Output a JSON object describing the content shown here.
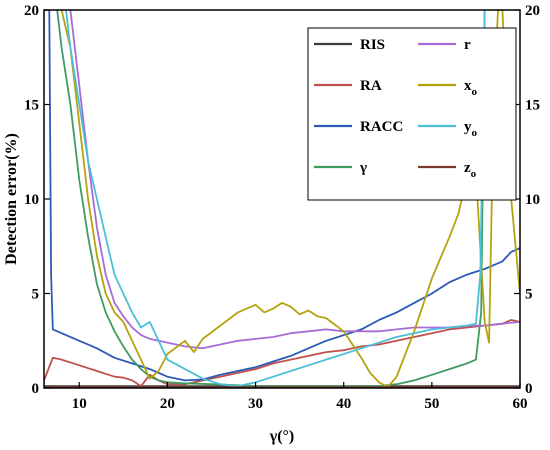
{
  "chart_data": {
    "type": "line",
    "title": "",
    "xlabel": "γ(°)",
    "ylabel": "Detection error(%)",
    "xlim": [
      6,
      60
    ],
    "ylim": [
      0,
      20
    ],
    "x_ticks": [
      "10",
      "20",
      "30",
      "40",
      "50",
      "60"
    ],
    "y_ticks": [
      "0",
      "5",
      "10",
      "15",
      "20"
    ],
    "y_ticks_right": [
      "0",
      "5",
      "10",
      "15",
      "20"
    ],
    "grid": false,
    "legend_position": "top-right",
    "series": [
      {
        "name": "RIS",
        "color": "#3d3d3d",
        "x": [
          6,
          10,
          15,
          20,
          25,
          30,
          35,
          40,
          45,
          50,
          55,
          60
        ],
        "y": [
          0.1,
          0.1,
          0.1,
          0.1,
          0.1,
          0.1,
          0.1,
          0.1,
          0.1,
          0.1,
          0.1,
          0.1
        ]
      },
      {
        "name": "RA",
        "color": "#c0504d",
        "x": [
          6,
          7,
          8,
          10,
          12,
          14,
          15,
          16,
          17,
          18,
          19,
          20,
          22,
          24,
          26,
          28,
          30,
          32,
          34,
          36,
          38,
          40,
          42,
          44,
          46,
          48,
          50,
          52,
          54,
          56,
          58,
          59,
          60
        ],
        "y": [
          0.4,
          1.6,
          1.5,
          1.2,
          0.9,
          0.6,
          0.55,
          0.4,
          0.1,
          0.7,
          0.4,
          0.2,
          0.2,
          0.4,
          0.6,
          0.8,
          1.0,
          1.3,
          1.5,
          1.7,
          1.9,
          2.0,
          2.2,
          2.3,
          2.5,
          2.7,
          2.9,
          3.1,
          3.2,
          3.3,
          3.4,
          3.6,
          3.5
        ]
      },
      {
        "name": "RACC",
        "color": "#2b59b8",
        "x": [
          6,
          6.6,
          6.8,
          7,
          8,
          10,
          12,
          14,
          16,
          18,
          20,
          22,
          24,
          26,
          28,
          30,
          32,
          34,
          36,
          38,
          40,
          42,
          44,
          46,
          48,
          50,
          52,
          54,
          56,
          58,
          59,
          60
        ],
        "y": [
          20,
          20,
          6,
          3.1,
          2.9,
          2.5,
          2.1,
          1.6,
          1.3,
          1.0,
          0.6,
          0.4,
          0.45,
          0.7,
          0.9,
          1.1,
          1.4,
          1.7,
          2.1,
          2.5,
          2.8,
          3.1,
          3.6,
          4.0,
          4.5,
          5.0,
          5.6,
          6.0,
          6.3,
          6.7,
          7.2,
          7.4
        ]
      },
      {
        "name": "γ",
        "color": "#3f9b62",
        "x": [
          7.5,
          8,
          9,
          10,
          11,
          12,
          13,
          14,
          15,
          16,
          17,
          18,
          19,
          20,
          22,
          25,
          30,
          35,
          40,
          44,
          46,
          48,
          50,
          52,
          54,
          55,
          55.6,
          56
        ],
        "y": [
          20,
          18,
          15,
          11,
          8,
          5.5,
          4.0,
          3.0,
          2.2,
          1.5,
          1.0,
          0.6,
          0.4,
          0.3,
          0.25,
          0.2,
          0.1,
          0.1,
          0.1,
          0.1,
          0.2,
          0.4,
          0.7,
          1.0,
          1.3,
          1.5,
          4,
          20
        ]
      },
      {
        "name": "r",
        "color": "#a86bd6",
        "x": [
          9,
          10,
          11,
          12,
          13,
          14,
          15,
          16,
          17,
          18,
          20,
          22,
          24,
          26,
          28,
          30,
          32,
          34,
          36,
          38,
          40,
          42,
          44,
          46,
          48,
          50,
          52,
          54,
          56,
          58,
          60
        ],
        "y": [
          20,
          16,
          12,
          8.5,
          6,
          4.5,
          3.8,
          3.2,
          2.8,
          2.6,
          2.4,
          2.2,
          2.1,
          2.3,
          2.5,
          2.6,
          2.7,
          2.9,
          3.0,
          3.1,
          3.0,
          3.0,
          3.0,
          3.1,
          3.2,
          3.2,
          3.2,
          3.3,
          3.3,
          3.4,
          3.5
        ]
      },
      {
        "name": "xo",
        "color": "#b5a20f",
        "x": [
          8,
          9,
          10,
          11,
          12,
          13,
          14,
          15,
          16,
          17,
          18,
          19,
          20,
          22,
          23,
          24,
          26,
          28,
          30,
          31,
          32,
          33,
          34,
          35,
          36,
          37,
          38,
          40,
          42,
          43,
          44,
          45,
          46,
          48,
          50,
          52,
          53,
          54,
          55,
          56,
          56.5,
          57,
          57.5,
          58,
          59,
          60
        ],
        "y": [
          20,
          18,
          14,
          10,
          7,
          5,
          4,
          3.5,
          2.5,
          1.5,
          0.5,
          0.9,
          1.8,
          2.5,
          1.9,
          2.6,
          3.3,
          4.0,
          4.4,
          4.0,
          4.2,
          4.5,
          4.3,
          3.9,
          4.1,
          3.8,
          3.7,
          3.0,
          1.6,
          0.8,
          0.3,
          0.05,
          0.6,
          3.0,
          5.8,
          8.0,
          9.2,
          11.2,
          11.4,
          3.5,
          2.4,
          15,
          20,
          20,
          10,
          5
        ]
      },
      {
        "name": "yo",
        "color": "#4bbfd9",
        "x": [
          8.5,
          9,
          10,
          11,
          12,
          13,
          14,
          15,
          16,
          17,
          18,
          19,
          20,
          22,
          24,
          26,
          28,
          30,
          32,
          34,
          36,
          38,
          40,
          42,
          44,
          46,
          48,
          50,
          52,
          54,
          55,
          55.5,
          56
        ],
        "y": [
          20,
          18,
          15,
          12,
          10,
          8,
          6,
          5,
          4,
          3.2,
          3.5,
          2.5,
          1.5,
          1.0,
          0.5,
          0.2,
          0.1,
          0.3,
          0.6,
          0.9,
          1.2,
          1.5,
          1.8,
          2.1,
          2.4,
          2.7,
          2.9,
          3.1,
          3.2,
          3.3,
          3.4,
          6,
          20
        ]
      },
      {
        "name": "zo",
        "color": "#7a3b2e",
        "x": [
          6,
          10,
          15,
          20,
          25,
          30,
          35,
          40,
          45,
          50,
          55,
          60
        ],
        "y": [
          0.05,
          0.05,
          0.05,
          0.05,
          0.05,
          0.05,
          0.05,
          0.05,
          0.05,
          0.05,
          0.05,
          0.05
        ]
      }
    ]
  }
}
